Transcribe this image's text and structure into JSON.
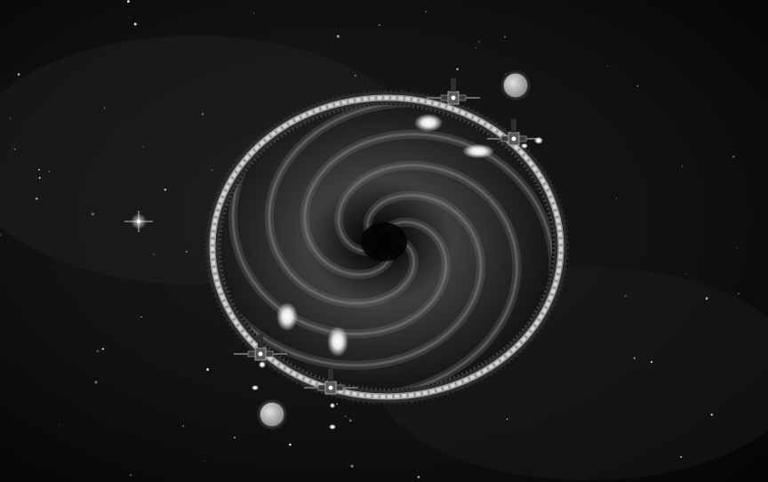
{
  "scene": {
    "type": "space-game-viewport",
    "palette": "grayscale",
    "colors": {
      "space": "#0b0b0c",
      "ring": "#bdbdbd",
      "ring_segment_dark": "#5c5c5c",
      "vortex_core": "#050505",
      "vortex_arms": "#6d6d6d",
      "thruster_glow": "#f2f2f2",
      "ship_hull": "#3a3a3a",
      "ship_dish": "#cfcfcf"
    },
    "objects": [
      {
        "kind": "jump-gate-ring",
        "icon": "ring-gate"
      },
      {
        "kind": "wormhole-vortex",
        "icon": "spiral-vortex"
      },
      {
        "kind": "tug-ship",
        "icon": "satellite-ship",
        "count": 4
      },
      {
        "kind": "starfield",
        "icon": "stars"
      }
    ]
  }
}
